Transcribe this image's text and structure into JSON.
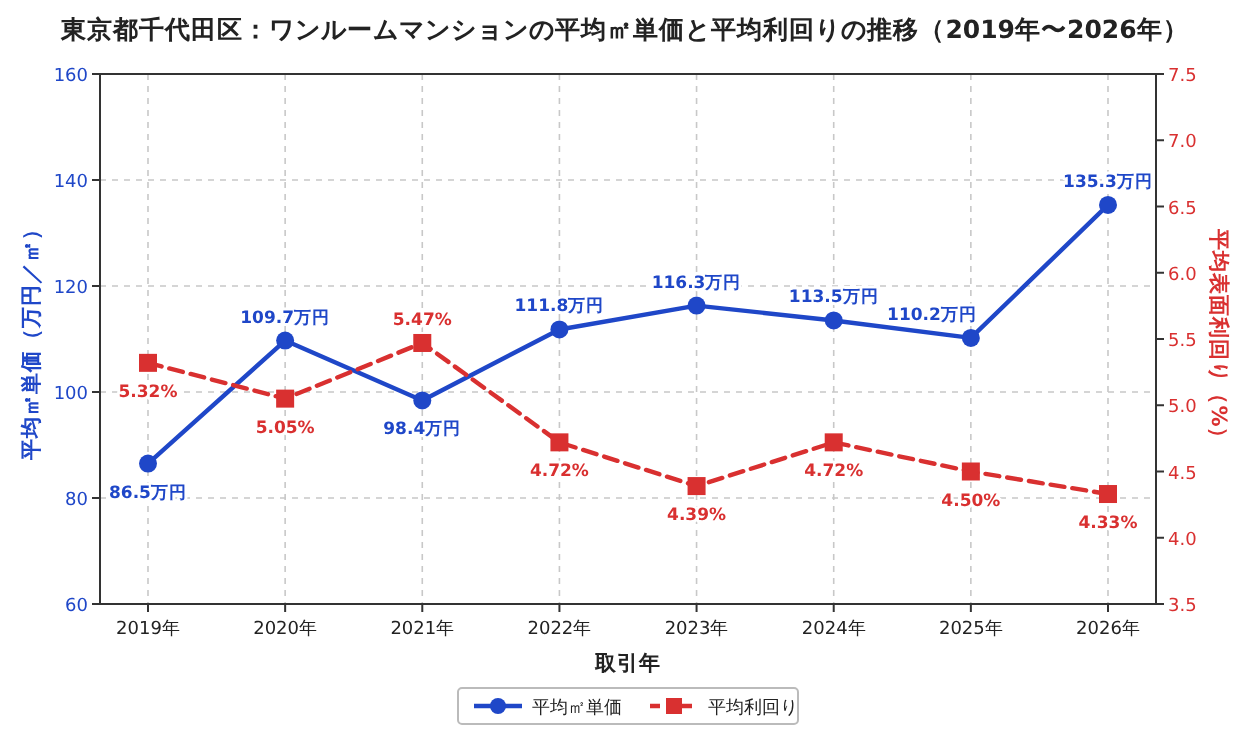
{
  "chart_data": {
    "type": "line",
    "title": "東京都千代田区：ワンルームマンションの平均㎡単価と平均利回りの推移（2019年〜2026年）",
    "xlabel": "取引年",
    "ylabel": "平均㎡単価（万円／㎡）",
    "y2label": "平均表面利回り（%）",
    "categories": [
      "2019年",
      "2020年",
      "2021年",
      "2022年",
      "2023年",
      "2024年",
      "2025年",
      "2026年"
    ],
    "series": [
      {
        "name": "平均㎡単価",
        "color": "#1f47c8",
        "marker": "circle",
        "line_style": "solid",
        "values": [
          86.5,
          109.7,
          98.4,
          111.8,
          116.3,
          113.5,
          110.2,
          135.3
        ],
        "value_labels": [
          "86.5万円",
          "109.7万円",
          "98.4万円",
          "111.8万円",
          "116.3万円",
          "113.5万円",
          "110.2万円",
          "135.3万円"
        ]
      },
      {
        "name": "平均利回り",
        "color": "#d93030",
        "marker": "square",
        "line_style": "dashed",
        "axis": "y2",
        "values": [
          5.32,
          5.05,
          5.47,
          4.72,
          4.39,
          4.72,
          4.5,
          4.33
        ],
        "value_labels": [
          "5.32%",
          "5.05%",
          "5.47%",
          "4.72%",
          "4.39%",
          "4.72%",
          "4.50%",
          "4.33%"
        ]
      }
    ],
    "ylim": [
      60,
      160
    ],
    "yticks": [
      60,
      80,
      100,
      120,
      140,
      160
    ],
    "y2lim": [
      3.5,
      7.5
    ],
    "y2ticks": [
      3.5,
      {
        "value": 4,
        "label": "4.0"
      },
      4.5,
      {
        "value": 5,
        "label": "5.0"
      },
      5.5,
      {
        "value": 6,
        "label": "6.0"
      },
      6.5,
      {
        "value": 7,
        "label": "7.0"
      },
      7.5
    ],
    "grid": true,
    "legend": "bottom"
  }
}
